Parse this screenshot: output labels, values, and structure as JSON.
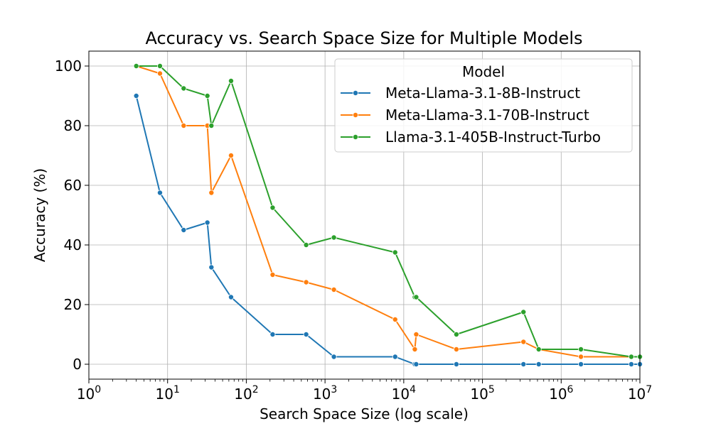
{
  "chart_data": {
    "type": "line",
    "title": "Accuracy vs. Search Space Size for Multiple Models",
    "xlabel": "Search Space Size (log scale)",
    "ylabel": "Accuracy (%)",
    "x_scale": "log",
    "xlim": [
      1,
      10000000
    ],
    "ylim": [
      -5,
      105
    ],
    "x_ticks": [
      1,
      10,
      100,
      1000,
      10000,
      100000,
      1000000,
      10000000
    ],
    "x_tick_base": "10",
    "x_tick_exponents": [
      "0",
      "1",
      "2",
      "3",
      "4",
      "5",
      "6",
      "7"
    ],
    "y_ticks": [
      0,
      20,
      40,
      60,
      80,
      100
    ],
    "y_tick_labels": [
      "0",
      "20",
      "40",
      "60",
      "80",
      "100"
    ],
    "grid": true,
    "legend": {
      "title": "Model",
      "placement": "top-right"
    },
    "series": [
      {
        "name": "Meta-Llama-3.1-8B-Instruct",
        "color": "#1f77b4",
        "x": [
          4,
          8,
          16,
          32,
          36,
          64,
          216,
          576,
          1296,
          7776,
          13824,
          14400,
          46656,
          331776,
          518400,
          1782000,
          7776000,
          10000000
        ],
        "y": [
          90,
          57.5,
          45,
          47.5,
          32.5,
          22.5,
          10,
          10,
          2.5,
          2.5,
          0,
          0,
          0,
          0,
          0,
          0,
          0,
          0
        ]
      },
      {
        "name": "Meta-Llama-3.1-70B-Instruct",
        "color": "#ff7f0e",
        "x": [
          4,
          8,
          16,
          32,
          36,
          64,
          216,
          576,
          1296,
          7776,
          13824,
          14400,
          46656,
          331776,
          518400,
          1782000,
          7776000,
          10000000
        ],
        "y": [
          100,
          97.5,
          80,
          80,
          57.5,
          70,
          30,
          27.5,
          25,
          15,
          5,
          10,
          5,
          7.5,
          5,
          2.5,
          2.5,
          2.5
        ]
      },
      {
        "name": "Llama-3.1-405B-Instruct-Turbo",
        "color": "#2ca02c",
        "x": [
          4,
          8,
          16,
          32,
          36,
          64,
          216,
          576,
          1296,
          7776,
          13824,
          14400,
          46656,
          331776,
          518400,
          1782000,
          7776000,
          10000000
        ],
        "y": [
          100,
          100,
          92.5,
          90,
          80,
          95,
          52.5,
          40,
          42.5,
          37.5,
          22.5,
          22.5,
          10,
          17.5,
          5,
          5,
          2.5,
          2.5
        ]
      }
    ]
  }
}
